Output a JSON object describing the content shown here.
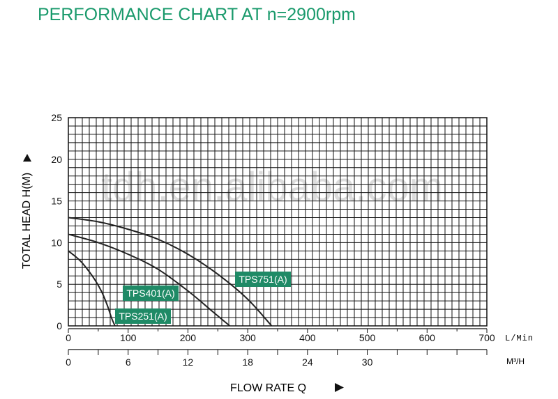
{
  "title": "PERFORMANCE CHART AT n=2900rpm",
  "watermark": "tdh.en.alibaba.com",
  "colors": {
    "title": "#1a9a6c",
    "label_bg": "#1f8a66",
    "label_text": "#ffffff",
    "grid": "#111111",
    "curve": "#222222",
    "watermark": "#dcdcdc"
  },
  "chart_data": {
    "type": "line",
    "title": "PERFORMANCE CHART AT n=2900rpm",
    "xlabel": "FLOW RATE Q",
    "ylabel": "TOTAL HEAD H(M)",
    "x_unit": "L/Min",
    "x2_unit": "M³/H",
    "xlim": [
      0,
      700
    ],
    "ylim": [
      0,
      25
    ],
    "x_ticks": [
      0,
      100,
      200,
      300,
      400,
      500,
      600,
      700
    ],
    "x2_ticks": [
      0,
      6,
      12,
      18,
      24,
      30
    ],
    "y_ticks": [
      0,
      5,
      10,
      15,
      20,
      25
    ],
    "grid": true,
    "series": [
      {
        "name": "TPS251(A)",
        "x": [
          0,
          20,
          40,
          55,
          65,
          72,
          78
        ],
        "y": [
          9,
          7.8,
          6.0,
          4.2,
          2.5,
          1.0,
          0
        ]
      },
      {
        "name": "TPS401(A)",
        "x": [
          0,
          50,
          100,
          150,
          200,
          240,
          270
        ],
        "y": [
          11,
          10,
          8.6,
          6.8,
          4.2,
          1.8,
          0
        ]
      },
      {
        "name": "TPS751(A)",
        "x": [
          0,
          50,
          100,
          150,
          200,
          250,
          300,
          340
        ],
        "y": [
          13,
          12.5,
          11.6,
          10.4,
          8.6,
          6.2,
          3.2,
          0
        ]
      }
    ]
  }
}
